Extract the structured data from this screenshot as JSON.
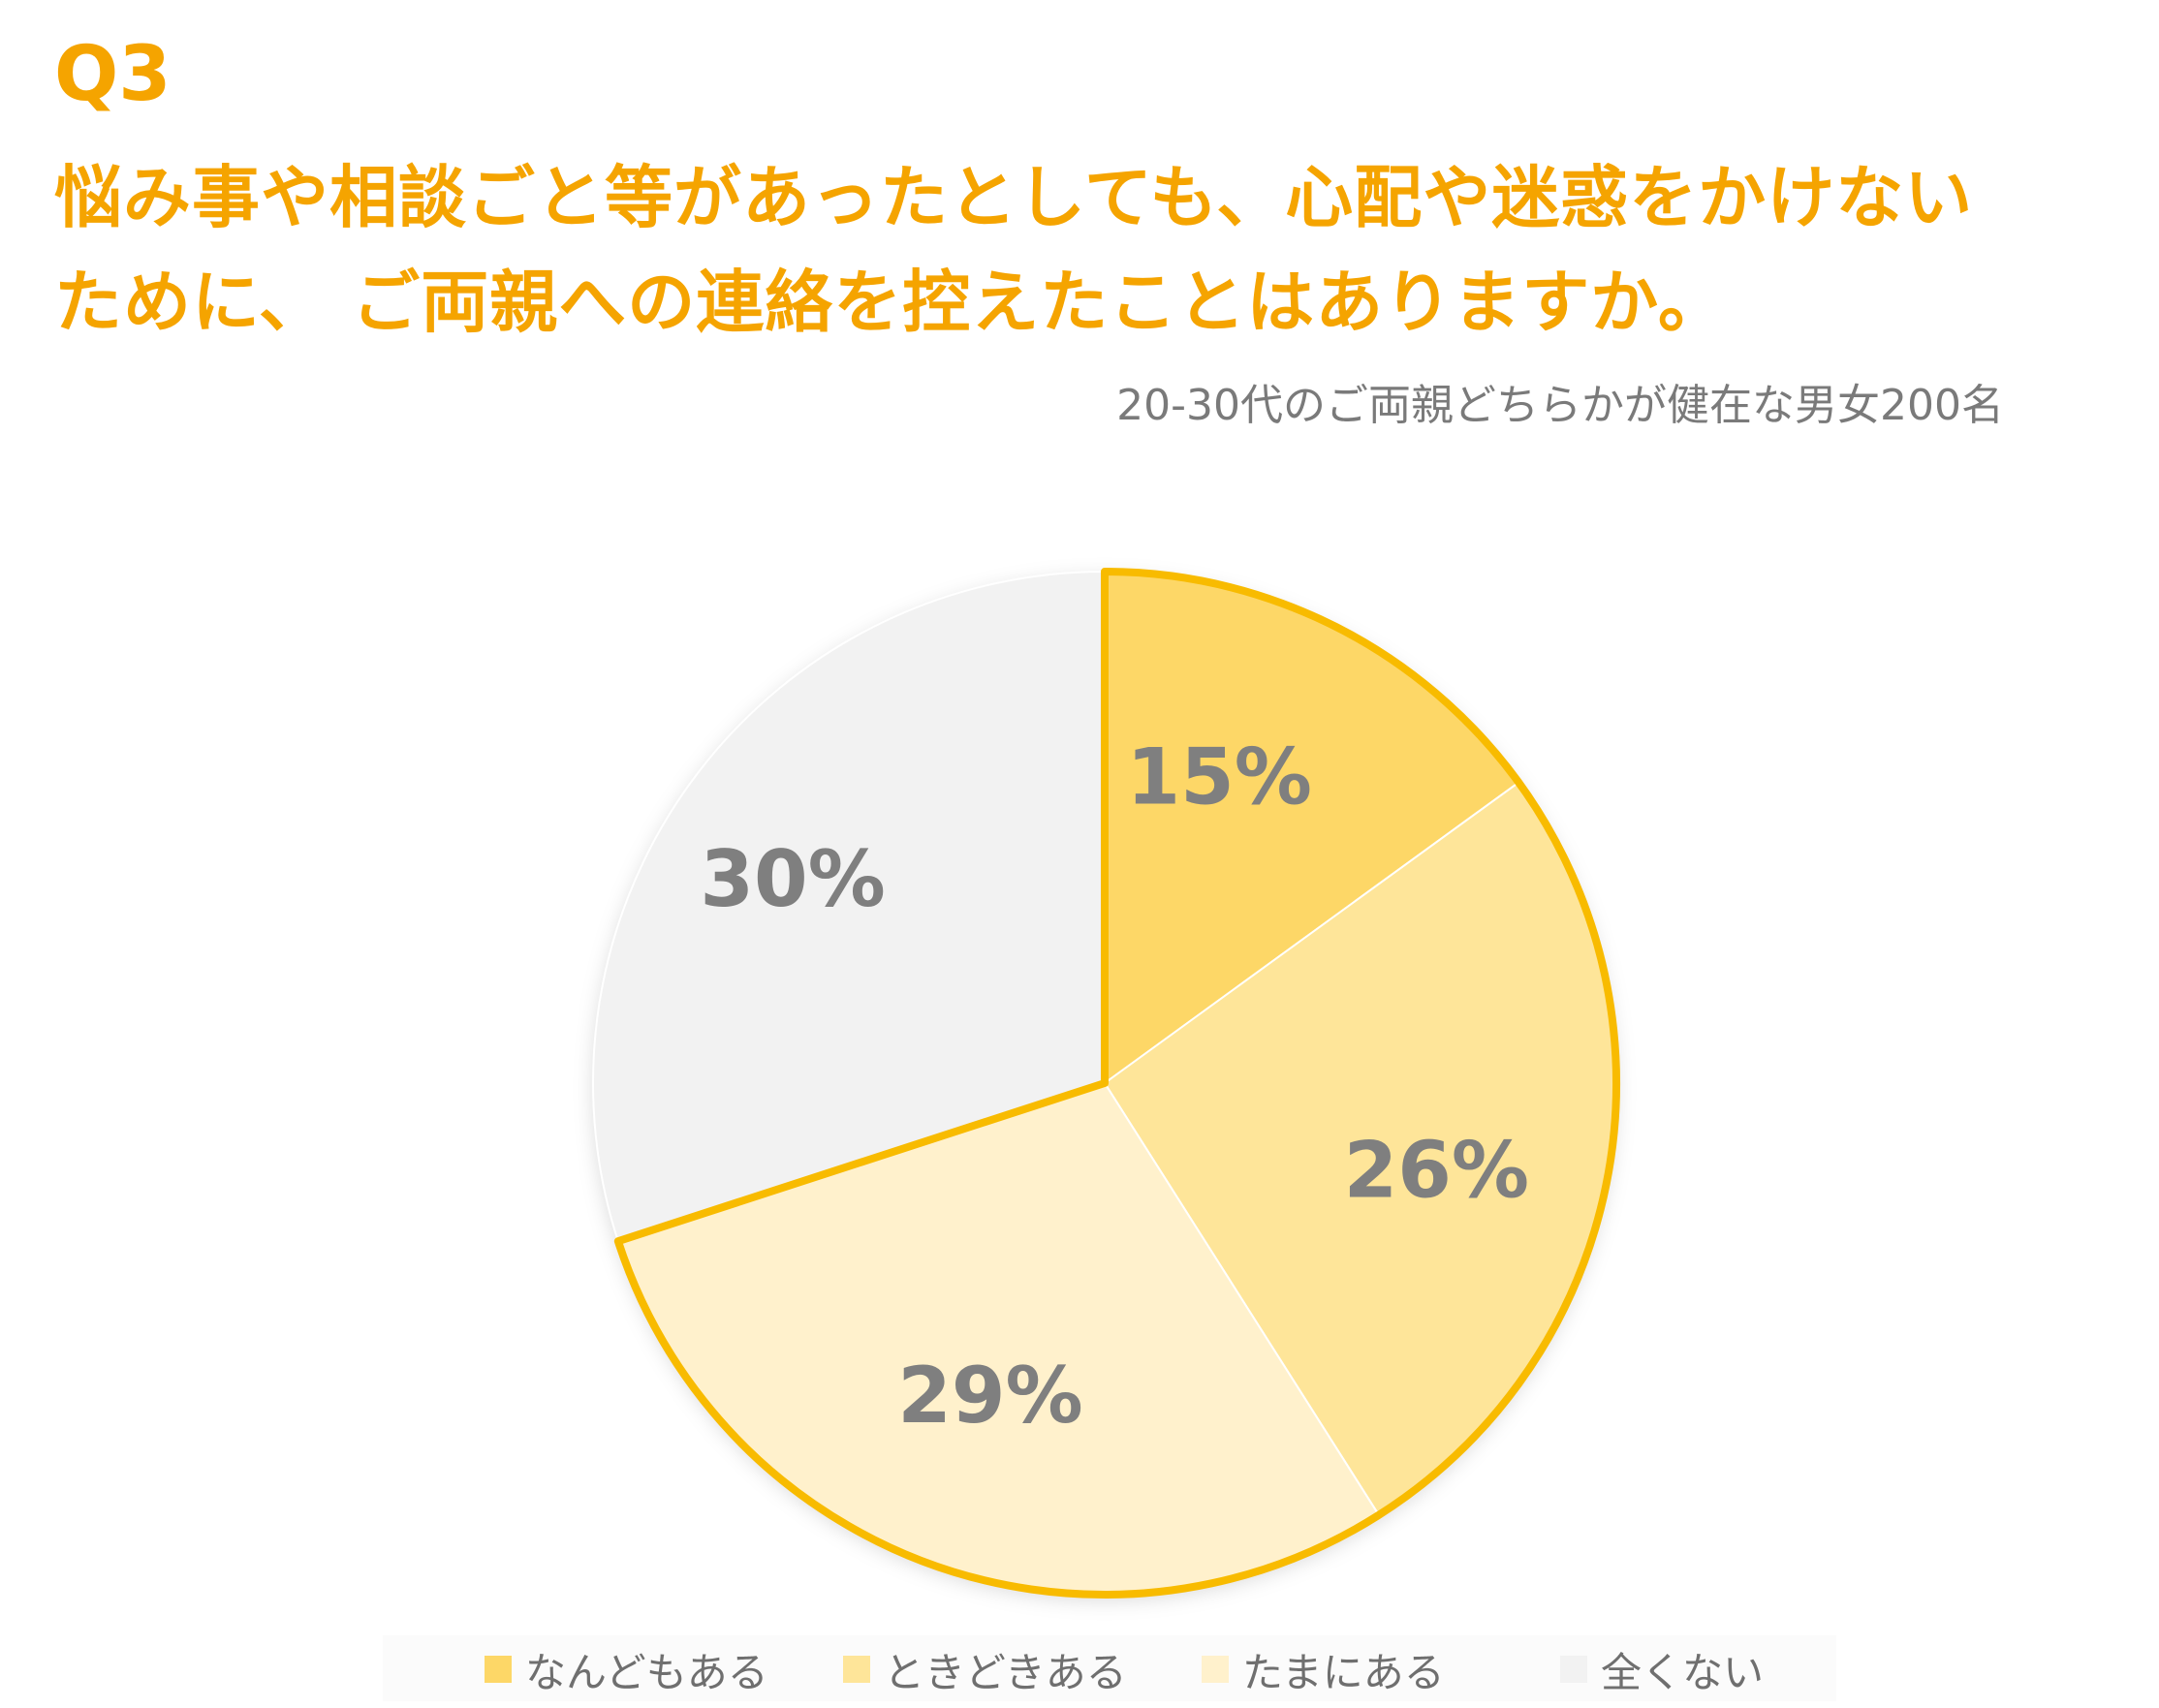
{
  "header": {
    "question_number": "Q3",
    "question_lines": [
      "悩み事や相談ごと等があったとしても、心配や迷惑をかけない",
      "ために、 ご両親への連絡を控えたことはありますか。"
    ],
    "subtitle": "20-30代のご両親どちらかが健在な男女200名"
  },
  "chart_data": {
    "type": "pie",
    "title": "",
    "start": "12 o'clock",
    "direction": "clockwise",
    "slices": [
      {
        "label": "なんどもある",
        "value": 15,
        "display": "15%",
        "color": "#fdd767"
      },
      {
        "label": "ときどきある",
        "value": 26,
        "display": "26%",
        "color": "#fee599"
      },
      {
        "label": "たまにある",
        "value": 29,
        "display": "29%",
        "color": "#fff1cc"
      },
      {
        "label": "全くない",
        "value": 30,
        "display": "30%",
        "color": "#f2f2f2"
      }
    ],
    "highlight_outline_color": "#f8bb00",
    "highlighted_slices": [
      "なんどもある",
      "ときどきある",
      "たまにある"
    ],
    "legend_position": "bottom"
  }
}
